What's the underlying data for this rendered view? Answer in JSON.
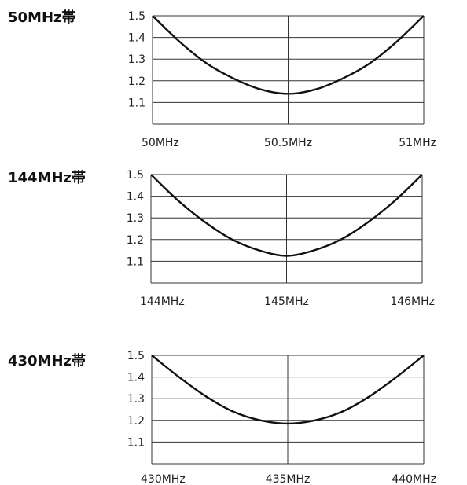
{
  "chart_data": [
    {
      "type": "line",
      "title": "50MHz帯",
      "x": [
        50,
        50.5,
        51
      ],
      "x_tick_labels": [
        "50MHz",
        "50.5MHz",
        "51MHz"
      ],
      "y_tick_labels": [
        "1.5",
        "1.4",
        "1.3",
        "1.2",
        "1.1"
      ],
      "ylim": [
        1.0,
        1.5
      ],
      "xlim": [
        50,
        51
      ],
      "grid": true,
      "series": [
        {
          "values": [
            {
              "x": 50.0,
              "y": 1.5
            },
            {
              "x": 50.1,
              "y": 1.38
            },
            {
              "x": 50.2,
              "y": 1.28
            },
            {
              "x": 50.3,
              "y": 1.21
            },
            {
              "x": 50.4,
              "y": 1.16
            },
            {
              "x": 50.5,
              "y": 1.14
            },
            {
              "x": 50.6,
              "y": 1.16
            },
            {
              "x": 50.7,
              "y": 1.21
            },
            {
              "x": 50.8,
              "y": 1.28
            },
            {
              "x": 50.9,
              "y": 1.38
            },
            {
              "x": 51.0,
              "y": 1.5
            }
          ]
        }
      ]
    },
    {
      "type": "line",
      "title": "144MHz帯",
      "x": [
        144,
        145,
        146
      ],
      "x_tick_labels": [
        "144MHz",
        "145MHz",
        "146MHz"
      ],
      "y_tick_labels": [
        "1.5",
        "1.4",
        "1.3",
        "1.2",
        "1.1"
      ],
      "ylim": [
        1.0,
        1.5
      ],
      "xlim": [
        144,
        146
      ],
      "grid": true,
      "series": [
        {
          "values": [
            {
              "x": 144.0,
              "y": 1.5
            },
            {
              "x": 144.2,
              "y": 1.38
            },
            {
              "x": 144.4,
              "y": 1.28
            },
            {
              "x": 144.6,
              "y": 1.2
            },
            {
              "x": 144.8,
              "y": 1.15
            },
            {
              "x": 145.0,
              "y": 1.125
            },
            {
              "x": 145.2,
              "y": 1.15
            },
            {
              "x": 145.4,
              "y": 1.2
            },
            {
              "x": 145.6,
              "y": 1.28
            },
            {
              "x": 145.8,
              "y": 1.38
            },
            {
              "x": 146.0,
              "y": 1.5
            }
          ]
        }
      ]
    },
    {
      "type": "line",
      "title": "430MHz帯",
      "x": [
        430,
        435,
        440
      ],
      "x_tick_labels": [
        "430MHz",
        "435MHz",
        "440MHz"
      ],
      "y_tick_labels": [
        "1.5",
        "1.4",
        "1.3",
        "1.2",
        "1.1"
      ],
      "ylim": [
        1.0,
        1.5
      ],
      "xlim": [
        430,
        440
      ],
      "grid": true,
      "series": [
        {
          "values": [
            {
              "x": 430,
              "y": 1.5
            },
            {
              "x": 431,
              "y": 1.4
            },
            {
              "x": 432,
              "y": 1.31
            },
            {
              "x": 433,
              "y": 1.24
            },
            {
              "x": 434,
              "y": 1.2
            },
            {
              "x": 435,
              "y": 1.185
            },
            {
              "x": 436,
              "y": 1.2
            },
            {
              "x": 437,
              "y": 1.24
            },
            {
              "x": 438,
              "y": 1.31
            },
            {
              "x": 439,
              "y": 1.4
            },
            {
              "x": 440,
              "y": 1.5
            }
          ]
        }
      ]
    }
  ]
}
